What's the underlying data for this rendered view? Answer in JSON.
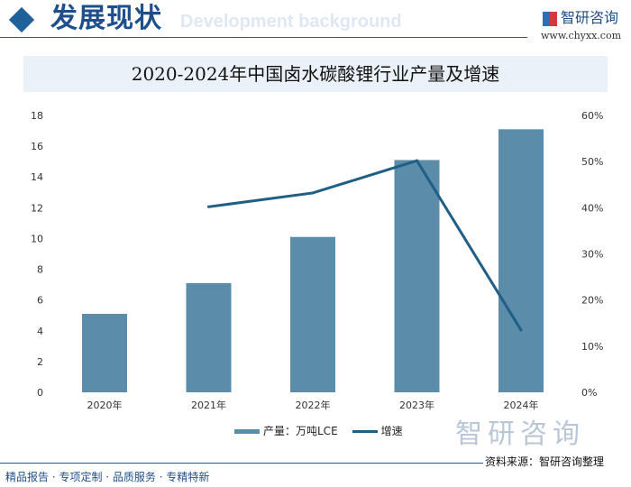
{
  "header": {
    "title": "发展现状",
    "ghost_text": "Development background",
    "logo_text": "智研咨询",
    "url": "www.chyxx.com"
  },
  "chart_data": {
    "type": "bar+line",
    "title": "2020-2024年中国卤水碳酸锂行业产量及增速",
    "categories": [
      "2020年",
      "2021年",
      "2022年",
      "2023年",
      "2024年"
    ],
    "series": [
      {
        "name": "产量：万吨LCE",
        "type": "bar",
        "axis": "left",
        "color": "#5b8ca9",
        "values": [
          5.1,
          7.1,
          10.1,
          15.1,
          17.1
        ]
      },
      {
        "name": "增速",
        "type": "line",
        "axis": "right",
        "color": "#1f5f86",
        "values": [
          null,
          40.2,
          43.2,
          50.2,
          13.5
        ]
      }
    ],
    "y_left": {
      "range": [
        0,
        18
      ],
      "ticks": [
        "0",
        "2",
        "4",
        "6",
        "8",
        "10",
        "12",
        "14",
        "16",
        "18"
      ]
    },
    "y_right": {
      "range": [
        0,
        60
      ],
      "ticks": [
        "0%",
        "10%",
        "20%",
        "30%",
        "40%",
        "50%",
        "60%"
      ]
    },
    "grid": false,
    "legend_placement": "bottom"
  },
  "watermark": "智研咨询",
  "source": "资料来源：智研咨询整理",
  "footer": "精品报告 · 专项定制 · 品质服务 · 专精特新"
}
